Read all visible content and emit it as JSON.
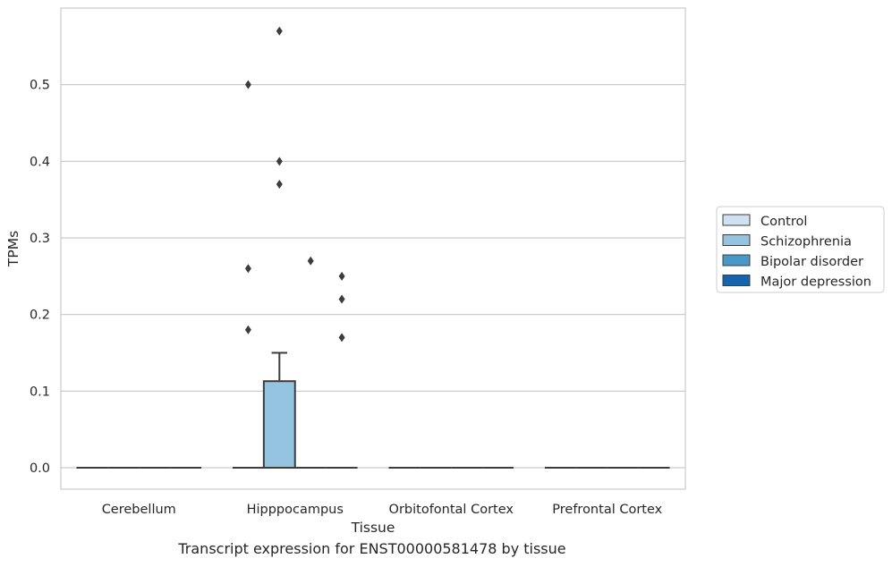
{
  "chart_data": {
    "type": "box",
    "caption": "Transcript expression for ENST00000581478 by tissue",
    "xlabel": "Tissue",
    "ylabel": "TPMs",
    "ylim": [
      -0.028,
      0.6
    ],
    "yticks": [
      0.0,
      0.1,
      0.2,
      0.3,
      0.4,
      0.5
    ],
    "ytick_labels": [
      "0.0",
      "0.1",
      "0.2",
      "0.3",
      "0.4",
      "0.5"
    ],
    "grid": true,
    "legend": {
      "position": "right",
      "entries": [
        {
          "name": "Control",
          "color": "#d0e1f2"
        },
        {
          "name": "Schizophrenia",
          "color": "#94c4df"
        },
        {
          "name": "Bipolar disorder",
          "color": "#4a98c9"
        },
        {
          "name": "Major depression",
          "color": "#1764ab"
        }
      ]
    },
    "categories": [
      "Cerebellum",
      "Hipppocampus",
      "Orbitofontal Cortex",
      "Prefrontal Cortex"
    ],
    "series": [
      {
        "name": "Control",
        "color": "#d0e1f2",
        "boxes": [
          {
            "q1": 0,
            "median": 0,
            "q3": 0,
            "whisker_low": 0,
            "whisker_high": 0,
            "outliers": []
          },
          {
            "q1": 0,
            "median": 0,
            "q3": 0,
            "whisker_low": 0,
            "whisker_high": 0,
            "outliers": [
              0.5,
              0.26,
              0.18
            ]
          },
          {
            "q1": 0,
            "median": 0,
            "q3": 0,
            "whisker_low": 0,
            "whisker_high": 0,
            "outliers": []
          },
          {
            "q1": 0,
            "median": 0,
            "q3": 0,
            "whisker_low": 0,
            "whisker_high": 0,
            "outliers": []
          }
        ]
      },
      {
        "name": "Schizophrenia",
        "color": "#94c4df",
        "boxes": [
          {
            "q1": 0,
            "median": 0,
            "q3": 0,
            "whisker_low": 0,
            "whisker_high": 0,
            "outliers": []
          },
          {
            "q1": 0,
            "median": 0,
            "q3": 0.113,
            "whisker_low": 0,
            "whisker_high": 0.15,
            "outliers": [
              0.57,
              0.4,
              0.37
            ]
          },
          {
            "q1": 0,
            "median": 0,
            "q3": 0,
            "whisker_low": 0,
            "whisker_high": 0,
            "outliers": []
          },
          {
            "q1": 0,
            "median": 0,
            "q3": 0,
            "whisker_low": 0,
            "whisker_high": 0,
            "outliers": []
          }
        ]
      },
      {
        "name": "Bipolar disorder",
        "color": "#4a98c9",
        "boxes": [
          {
            "q1": 0,
            "median": 0,
            "q3": 0,
            "whisker_low": 0,
            "whisker_high": 0,
            "outliers": []
          },
          {
            "q1": 0,
            "median": 0,
            "q3": 0,
            "whisker_low": 0,
            "whisker_high": 0,
            "outliers": [
              0.27
            ]
          },
          {
            "q1": 0,
            "median": 0,
            "q3": 0,
            "whisker_low": 0,
            "whisker_high": 0,
            "outliers": []
          },
          {
            "q1": 0,
            "median": 0,
            "q3": 0,
            "whisker_low": 0,
            "whisker_high": 0,
            "outliers": []
          }
        ]
      },
      {
        "name": "Major depression",
        "color": "#1764ab",
        "boxes": [
          {
            "q1": 0,
            "median": 0,
            "q3": 0,
            "whisker_low": 0,
            "whisker_high": 0,
            "outliers": []
          },
          {
            "q1": 0,
            "median": 0,
            "q3": 0,
            "whisker_low": 0,
            "whisker_high": 0,
            "outliers": [
              0.25,
              0.22,
              0.17
            ]
          },
          {
            "q1": 0,
            "median": 0,
            "q3": 0,
            "whisker_low": 0,
            "whisker_high": 0,
            "outliers": []
          },
          {
            "q1": 0,
            "median": 0,
            "q3": 0,
            "whisker_low": 0,
            "whisker_high": 0,
            "outliers": []
          }
        ]
      }
    ]
  }
}
